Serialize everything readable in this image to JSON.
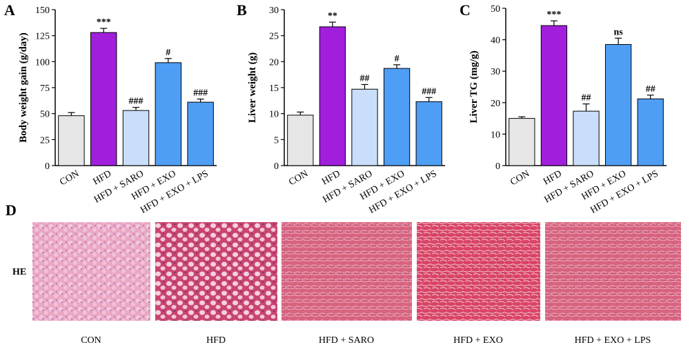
{
  "chart_data": [
    {
      "type": "bar",
      "panel": "A",
      "ylabel": "Body weight gain (g/day)",
      "categories": [
        "CON",
        "HFD",
        "HFD + SARO",
        "HFD + EXO",
        "HFD + EXO + LPS"
      ],
      "values": [
        48,
        128,
        53,
        99,
        61
      ],
      "errors": [
        3,
        4,
        3,
        4,
        3
      ],
      "annotations": [
        null,
        "***",
        "###",
        "#",
        "###"
      ],
      "colors": [
        "#e6e6e6",
        "#a11fdc",
        "#c9defa",
        "#4f9ef5",
        "#4f9ef5"
      ],
      "ylim": [
        0,
        150
      ],
      "yticks": [
        0,
        25,
        50,
        75,
        100,
        125,
        150
      ]
    },
    {
      "type": "bar",
      "panel": "B",
      "ylabel": "Liver weight (g)",
      "categories": [
        "CON",
        "HFD",
        "HFD + SARO",
        "HFD + EXO",
        "HFD + EXO + LPS"
      ],
      "values": [
        9.7,
        26.7,
        14.7,
        18.7,
        12.3
      ],
      "errors": [
        0.6,
        0.9,
        0.9,
        0.7,
        0.8
      ],
      "annotations": [
        null,
        "**",
        "##",
        "#",
        "###"
      ],
      "colors": [
        "#e6e6e6",
        "#a11fdc",
        "#c9defa",
        "#4f9ef5",
        "#4f9ef5"
      ],
      "ylim": [
        0,
        30
      ],
      "yticks": [
        0,
        5,
        10,
        15,
        20,
        25,
        30
      ]
    },
    {
      "type": "bar",
      "panel": "C",
      "ylabel": "Liver TG (mg/g)",
      "categories": [
        "CON",
        "HFD",
        "HFD + SARO",
        "HFD + EXO",
        "HFD + EXO + LPS"
      ],
      "values": [
        15,
        44.5,
        17.3,
        38.5,
        21.2
      ],
      "errors": [
        0.5,
        1.5,
        2.3,
        2,
        1.2
      ],
      "annotations": [
        null,
        "***",
        "##",
        "ns",
        "##"
      ],
      "colors": [
        "#e6e6e6",
        "#a11fdc",
        "#c9defa",
        "#4f9ef5",
        "#4f9ef5"
      ],
      "ylim": [
        0,
        50
      ],
      "yticks": [
        0,
        10,
        20,
        30,
        40,
        50
      ]
    }
  ],
  "histology": {
    "panel": "D",
    "stain": "HE",
    "captions": [
      "CON",
      "HFD",
      "HFD + SARO",
      "HFD + EXO",
      "HFD + EXO + LPS"
    ]
  }
}
